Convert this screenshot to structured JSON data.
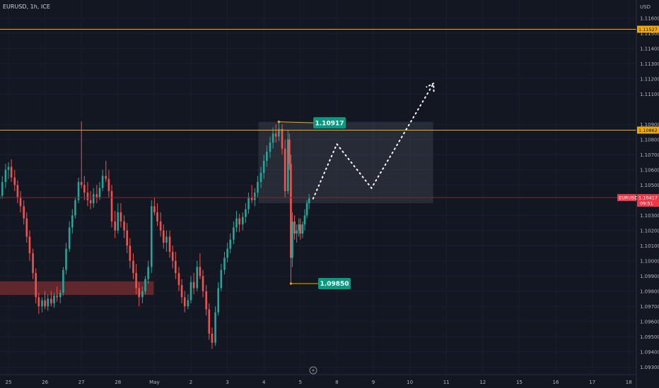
{
  "title": "EURUSD, 1h, ICE",
  "currency": "USD",
  "colors": {
    "background": "#131722",
    "up": "#26a69a",
    "down": "#ef5350",
    "resistance": "#f2a900",
    "callout": "#089981"
  },
  "chart_data": {
    "type": "candlestick",
    "ylim": [
      1.0925,
      1.1172
    ],
    "y_ticks": [
      "1.11600",
      "1.11500",
      "1.11400",
      "1.11300",
      "1.11200",
      "1.11100",
      "1.10900",
      "1.10800",
      "1.10700",
      "1.10600",
      "1.10500",
      "1.10300",
      "1.10200",
      "1.10100",
      "1.10000",
      "1.09900",
      "1.09800",
      "1.09700",
      "1.09600",
      "1.09500",
      "1.09400",
      "1.09300"
    ],
    "x_ticks": [
      "25",
      "26",
      "27",
      "28",
      "May",
      "2",
      "3",
      "4",
      "5",
      "8",
      "9",
      "10",
      "11",
      "12",
      "15",
      "16",
      "17",
      "18"
    ],
    "x_tick_days": [
      0,
      1,
      2,
      3,
      4,
      5,
      6,
      7,
      8,
      9,
      10,
      11,
      12,
      13,
      14,
      15,
      16,
      17
    ],
    "x_range_days": [
      0,
      17.2
    ],
    "horizontal_levels": [
      {
        "value": 1.11527,
        "label": "1.11527",
        "color": "#f2a900"
      },
      {
        "value": 1.10862,
        "label": "1.10862",
        "color": "#f2a900"
      }
    ],
    "current_price": {
      "value": 1.10417,
      "symbol": "EURUSD",
      "label": "1.10417",
      "countdown": "09:51",
      "color": "#f23645"
    },
    "support_zone": {
      "low": 1.09805,
      "high": 1.09835,
      "x_from_day": -0.5,
      "x_to_day": 3.98
    },
    "range_box": {
      "low": 1.1038,
      "high": 1.10917,
      "x_from_day": 6.85,
      "x_to_day": 11.64
    },
    "callouts": [
      {
        "label": "1.10917",
        "value": 1.10917,
        "anchor_day": 7.41
      },
      {
        "label": "1.09850",
        "value": 1.0985,
        "anchor_day": 7.74
      }
    ],
    "projection": [
      {
        "day": 8.35,
        "price": 1.1041
      },
      {
        "day": 9.0,
        "price": 1.1077
      },
      {
        "day": 9.95,
        "price": 1.1048
      },
      {
        "day": 11.65,
        "price": 1.1117
      }
    ],
    "candles": [
      [
        -0.5,
        1.104,
        1.1047,
        1.1036,
        1.1042
      ],
      [
        -0.42,
        1.1042,
        1.1048,
        1.1038,
        1.1044
      ],
      [
        -0.33,
        1.1044,
        1.105,
        1.1039,
        1.1041
      ],
      [
        -0.25,
        1.1041,
        1.1045,
        1.1036,
        1.1043
      ],
      [
        -0.17,
        1.1043,
        1.1056,
        1.1041,
        1.1052
      ],
      [
        -0.08,
        1.1052,
        1.1064,
        1.1048,
        1.106
      ],
      [
        0.0,
        1.106,
        1.1065,
        1.1054,
        1.1062
      ],
      [
        0.08,
        1.1062,
        1.1067,
        1.1052,
        1.1055
      ],
      [
        0.17,
        1.1055,
        1.106,
        1.1046,
        1.105
      ],
      [
        0.25,
        1.105,
        1.1053,
        1.1038,
        1.1042
      ],
      [
        0.33,
        1.1042,
        1.1046,
        1.1032,
        1.1036
      ],
      [
        0.42,
        1.1036,
        1.104,
        1.1024,
        1.1028
      ],
      [
        0.5,
        1.1028,
        1.1032,
        1.1012,
        1.1016
      ],
      [
        0.58,
        1.1016,
        1.102,
        1.1,
        1.1005
      ],
      [
        0.67,
        1.1005,
        1.1008,
        1.0988,
        1.0992
      ],
      [
        0.75,
        1.0992,
        1.0995,
        1.0972,
        1.0976
      ],
      [
        0.83,
        1.0976,
        1.0979,
        1.0965,
        1.097
      ],
      [
        0.92,
        1.097,
        1.0976,
        1.0966,
        1.0974
      ],
      [
        1.0,
        1.0974,
        1.098,
        1.0968,
        1.097
      ],
      [
        1.08,
        1.097,
        1.0978,
        1.0967,
        1.0975
      ],
      [
        1.17,
        1.0975,
        1.098,
        1.097,
        1.0972
      ],
      [
        1.25,
        1.0972,
        1.0979,
        1.0969,
        1.0977
      ],
      [
        1.33,
        1.0977,
        1.0983,
        1.0973,
        1.0976
      ],
      [
        1.42,
        1.0976,
        1.0981,
        1.0972,
        1.0979
      ],
      [
        1.5,
        1.0979,
        1.0996,
        1.0977,
        1.0994
      ],
      [
        1.58,
        1.0994,
        1.1012,
        1.0991,
        1.1008
      ],
      [
        1.67,
        1.1008,
        1.1026,
        1.1006,
        1.1022
      ],
      [
        1.75,
        1.1022,
        1.1034,
        1.1018,
        1.103
      ],
      [
        1.83,
        1.103,
        1.1042,
        1.1028,
        1.104
      ],
      [
        1.92,
        1.104,
        1.1055,
        1.1038,
        1.1052
      ],
      [
        2.0,
        1.1052,
        1.1092,
        1.1048,
        1.105
      ],
      [
        2.08,
        1.105,
        1.1056,
        1.104,
        1.1045
      ],
      [
        2.17,
        1.1045,
        1.1052,
        1.1036,
        1.104
      ],
      [
        2.25,
        1.104,
        1.1046,
        1.1034,
        1.1038
      ],
      [
        2.33,
        1.1038,
        1.1048,
        1.1035,
        1.1044
      ],
      [
        2.42,
        1.1044,
        1.105,
        1.1038,
        1.1042
      ],
      [
        2.5,
        1.1042,
        1.1052,
        1.104,
        1.1048
      ],
      [
        2.58,
        1.1048,
        1.106,
        1.1046,
        1.1056
      ],
      [
        2.67,
        1.1056,
        1.1066,
        1.1052,
        1.1054
      ],
      [
        2.75,
        1.1054,
        1.106,
        1.1042,
        1.1046
      ],
      [
        2.83,
        1.1046,
        1.105,
        1.1022,
        1.1026
      ],
      [
        2.92,
        1.1026,
        1.1033,
        1.1015,
        1.102
      ],
      [
        3.0,
        1.102,
        1.1038,
        1.1018,
        1.1032
      ],
      [
        3.08,
        1.1032,
        1.1038,
        1.1022,
        1.1026
      ],
      [
        3.17,
        1.1026,
        1.103,
        1.1015,
        1.102
      ],
      [
        3.25,
        1.102,
        1.1025,
        1.1005,
        1.101
      ],
      [
        3.33,
        1.101,
        1.1015,
        1.0995,
        1.1
      ],
      [
        3.42,
        1.1,
        1.1005,
        1.0988,
        1.0992
      ],
      [
        3.5,
        1.0992,
        1.0998,
        1.0978,
        1.0982
      ],
      [
        3.58,
        1.0982,
        1.0986,
        1.097,
        1.0976
      ],
      [
        3.67,
        1.0976,
        1.0983,
        1.0972,
        1.098
      ],
      [
        3.75,
        1.098,
        1.099,
        1.0978,
        1.0988
      ],
      [
        3.83,
        1.0988,
        1.1,
        1.0985,
        1.0996
      ],
      [
        3.92,
        1.0996,
        1.104,
        1.0992,
        1.1036
      ],
      [
        4.0,
        1.1036,
        1.1042,
        1.103,
        1.1032
      ],
      [
        4.08,
        1.1032,
        1.1038,
        1.1023,
        1.1026
      ],
      [
        4.17,
        1.1026,
        1.1032,
        1.1016,
        1.102
      ],
      [
        4.25,
        1.102,
        1.1024,
        1.1008,
        1.1012
      ],
      [
        4.33,
        1.1012,
        1.102,
        1.1006,
        1.1016
      ],
      [
        4.42,
        1.1016,
        1.102,
        1.1002,
        1.1006
      ],
      [
        4.5,
        1.1006,
        1.101,
        1.0995,
        1.1
      ],
      [
        4.58,
        1.1,
        1.1006,
        1.0988,
        1.0992
      ],
      [
        4.67,
        1.0992,
        1.0996,
        1.098,
        1.0984
      ],
      [
        4.75,
        1.0984,
        1.0988,
        1.0972,
        1.0976
      ],
      [
        4.83,
        1.0976,
        1.098,
        1.0966,
        1.097
      ],
      [
        4.92,
        1.097,
        1.0978,
        1.0968,
        1.0974
      ],
      [
        5.0,
        1.0974,
        1.099,
        1.0972,
        1.0986
      ],
      [
        5.08,
        1.0986,
        1.0992,
        1.0978,
        1.0982
      ],
      [
        5.17,
        1.0982,
        1.1,
        1.098,
        1.0996
      ],
      [
        5.25,
        1.0996,
        1.1005,
        1.0988,
        1.099
      ],
      [
        5.33,
        1.099,
        1.0994,
        1.0976,
        1.098
      ],
      [
        5.42,
        1.098,
        1.0984,
        1.0964,
        1.0968
      ],
      [
        5.5,
        1.0968,
        1.0972,
        1.0948,
        1.0952
      ],
      [
        5.58,
        1.0952,
        1.0956,
        1.0942,
        1.0946
      ],
      [
        5.67,
        1.0946,
        1.097,
        1.0944,
        1.0966
      ],
      [
        5.75,
        1.0966,
        1.0986,
        1.0964,
        1.0982
      ],
      [
        5.83,
        1.0982,
        1.0998,
        1.098,
        1.0994
      ],
      [
        5.92,
        1.0994,
        1.1006,
        1.0991,
        1.1002
      ],
      [
        6.0,
        1.1002,
        1.1012,
        1.0999,
        1.1008
      ],
      [
        6.08,
        1.1008,
        1.1018,
        1.1005,
        1.1014
      ],
      [
        6.17,
        1.1014,
        1.1026,
        1.1011,
        1.1022
      ],
      [
        6.25,
        1.1022,
        1.1033,
        1.1019,
        1.1028
      ],
      [
        6.33,
        1.1028,
        1.1031,
        1.1019,
        1.1024
      ],
      [
        6.42,
        1.1024,
        1.1032,
        1.102,
        1.1029
      ],
      [
        6.5,
        1.1029,
        1.1038,
        1.1025,
        1.1034
      ],
      [
        6.58,
        1.1034,
        1.1045,
        1.1031,
        1.1042
      ],
      [
        6.67,
        1.1042,
        1.105,
        1.1038,
        1.104
      ],
      [
        6.75,
        1.104,
        1.1048,
        1.1036,
        1.1045
      ],
      [
        6.83,
        1.1045,
        1.1056,
        1.1042,
        1.1052
      ],
      [
        6.92,
        1.1052,
        1.1062,
        1.1048,
        1.1058
      ],
      [
        7.0,
        1.1058,
        1.107,
        1.1054,
        1.1066
      ],
      [
        7.08,
        1.1066,
        1.1076,
        1.1062,
        1.1072
      ],
      [
        7.17,
        1.1072,
        1.1082,
        1.1068,
        1.1078
      ],
      [
        7.25,
        1.1078,
        1.1088,
        1.1074,
        1.1084
      ],
      [
        7.33,
        1.1084,
        1.109,
        1.1078,
        1.1082
      ],
      [
        7.41,
        1.1082,
        1.10917,
        1.1079,
        1.1087
      ],
      [
        7.5,
        1.1087,
        1.109,
        1.107,
        1.1074
      ],
      [
        7.58,
        1.1074,
        1.108,
        1.1042,
        1.1046
      ],
      [
        7.66,
        1.1046,
        1.1086,
        1.1044,
        1.108
      ],
      [
        7.7,
        1.108,
        1.1084,
        1.106,
        1.1064
      ],
      [
        7.74,
        1.1064,
        1.107,
        1.0985,
        1.1002
      ],
      [
        7.78,
        1.1002,
        1.1032,
        1.0996,
        1.1026
      ],
      [
        7.84,
        1.1026,
        1.103,
        1.1014,
        1.1018
      ],
      [
        7.9,
        1.1018,
        1.1024,
        1.1012,
        1.102
      ],
      [
        7.96,
        1.102,
        1.1028,
        1.1016,
        1.1024
      ],
      [
        8.0,
        1.1024,
        1.1028,
        1.1014,
        1.1018
      ],
      [
        8.06,
        1.1018,
        1.1026,
        1.1015,
        1.1024
      ],
      [
        8.12,
        1.1024,
        1.1034,
        1.102,
        1.103
      ],
      [
        8.18,
        1.103,
        1.104,
        1.1028,
        1.1038
      ],
      [
        8.24,
        1.1038,
        1.1044,
        1.1034,
        1.10417
      ]
    ]
  }
}
